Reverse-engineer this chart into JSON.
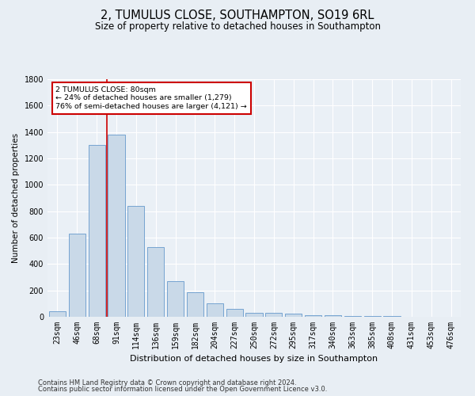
{
  "title": "2, TUMULUS CLOSE, SOUTHAMPTON, SO19 6RL",
  "subtitle": "Size of property relative to detached houses in Southampton",
  "xlabel": "Distribution of detached houses by size in Southampton",
  "ylabel": "Number of detached properties",
  "categories": [
    "23sqm",
    "46sqm",
    "68sqm",
    "91sqm",
    "114sqm",
    "136sqm",
    "159sqm",
    "182sqm",
    "204sqm",
    "227sqm",
    "250sqm",
    "272sqm",
    "295sqm",
    "317sqm",
    "340sqm",
    "363sqm",
    "385sqm",
    "408sqm",
    "431sqm",
    "453sqm",
    "476sqm"
  ],
  "values": [
    40,
    630,
    1300,
    1380,
    840,
    530,
    270,
    185,
    100,
    60,
    30,
    30,
    25,
    15,
    10,
    8,
    8,
    5,
    3,
    2,
    2
  ],
  "bar_color": "#c9d9e8",
  "bar_edgecolor": "#6699cc",
  "vline_color": "#cc0000",
  "annotation_box_text": "2 TUMULUS CLOSE: 80sqm\n← 24% of detached houses are smaller (1,279)\n76% of semi-detached houses are larger (4,121) →",
  "annotation_box_color": "#cc0000",
  "ylim": [
    0,
    1800
  ],
  "yticks": [
    0,
    200,
    400,
    600,
    800,
    1000,
    1200,
    1400,
    1600,
    1800
  ],
  "footer1": "Contains HM Land Registry data © Crown copyright and database right 2024.",
  "footer2": "Contains public sector information licensed under the Open Government Licence v3.0.",
  "bg_color": "#e8eef4",
  "plot_bg_color": "#eaf0f6",
  "grid_color": "#ffffff",
  "title_fontsize": 10.5,
  "subtitle_fontsize": 8.5,
  "xlabel_fontsize": 8,
  "ylabel_fontsize": 7.5,
  "tick_fontsize": 7,
  "annot_fontsize": 6.8,
  "footer_fontsize": 6
}
